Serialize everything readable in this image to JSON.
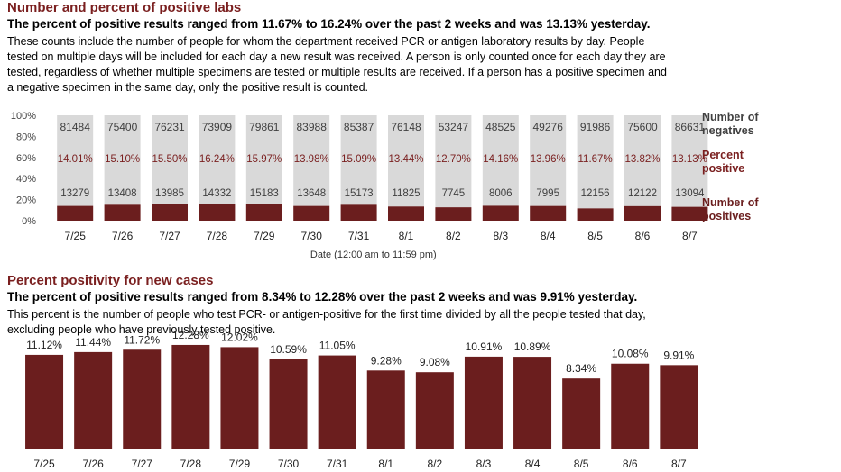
{
  "section1": {
    "heading": "Number and percent of positive labs",
    "subheading": "The percent of positive results ranged from 11.67% to 16.24% over the past 2 weeks and was 13.13% yesterday.",
    "description_lines": [
      "These counts include the number of people for whom the department received PCR or antigen laboratory results by day. People",
      "tested on multiple days will be included for each day a new result was received. A person is only counted once for each day they are",
      "tested, regardless of whether multiple specimens are tested or multiple results are received. If a person has a positive specimen and",
      "a negative specimen in the same day, only the positive result is counted."
    ]
  },
  "section2": {
    "heading": "Percent positivity for new cases",
    "subheading": "The percent of positive results ranged from 8.34% to 12.28% over the past 2 weeks and was 9.91% yesterday.",
    "description_lines": [
      "This percent is the number of people who test PCR- or antigen-positive for the first time divided by all the people tested that day,",
      "excluding people who have previously tested positive."
    ]
  },
  "colors": {
    "positive": "#6b1e1e",
    "negative": "#d9d9d9",
    "percent_text": "#7a1f1f",
    "heading": "#7a1f1f"
  },
  "chart_data": [
    {
      "type": "bar",
      "stacked": true,
      "normalized": true,
      "categories": [
        "7/25",
        "7/26",
        "7/27",
        "7/28",
        "7/29",
        "7/30",
        "7/31",
        "8/1",
        "8/2",
        "8/3",
        "8/4",
        "8/5",
        "8/6",
        "8/7"
      ],
      "series": [
        {
          "name": "Number of positives",
          "values": [
            13279,
            13408,
            13985,
            14332,
            15183,
            13648,
            15173,
            11825,
            7745,
            8006,
            7995,
            12156,
            12122,
            13094
          ]
        },
        {
          "name": "Number of negatives",
          "values": [
            81484,
            75400,
            76231,
            73909,
            79861,
            83988,
            85387,
            76148,
            53247,
            48525,
            49276,
            91986,
            75600,
            86631
          ]
        }
      ],
      "percent_positive_labels": [
        "14.01%",
        "15.10%",
        "15.50%",
        "16.24%",
        "15.97%",
        "13.98%",
        "15.09%",
        "13.44%",
        "12.70%",
        "14.16%",
        "13.96%",
        "11.67%",
        "13.82%",
        "13.13%"
      ],
      "percent_positive_title": "Percent positive",
      "ytick_labels": [
        "100%",
        "80%",
        "60%",
        "40%",
        "20%",
        "0%"
      ],
      "ylim": [
        0,
        100
      ],
      "xlabel": "Date (12:00 am to 11:59 pm)",
      "legend": [
        "Number of negatives",
        "Percent positive",
        "Number of positives"
      ],
      "legend_position": "right",
      "grid": false
    },
    {
      "type": "bar",
      "categories": [
        "7/25",
        "7/26",
        "7/27",
        "7/28",
        "7/29",
        "7/30",
        "7/31",
        "8/1",
        "8/2",
        "8/3",
        "8/4",
        "8/5",
        "8/6",
        "8/7"
      ],
      "values": [
        11.12,
        11.44,
        11.72,
        12.28,
        12.02,
        10.59,
        11.05,
        9.28,
        9.08,
        10.91,
        10.89,
        8.34,
        10.08,
        9.91
      ],
      "value_labels": [
        "11.12%",
        "11.44%",
        "11.72%",
        "12.28%",
        "12.02%",
        "10.59%",
        "11.05%",
        "9.28%",
        "9.08%",
        "10.91%",
        "10.89%",
        "8.34%",
        "10.08%",
        "9.91%"
      ],
      "ylim": [
        0,
        14
      ],
      "grid": false
    }
  ]
}
